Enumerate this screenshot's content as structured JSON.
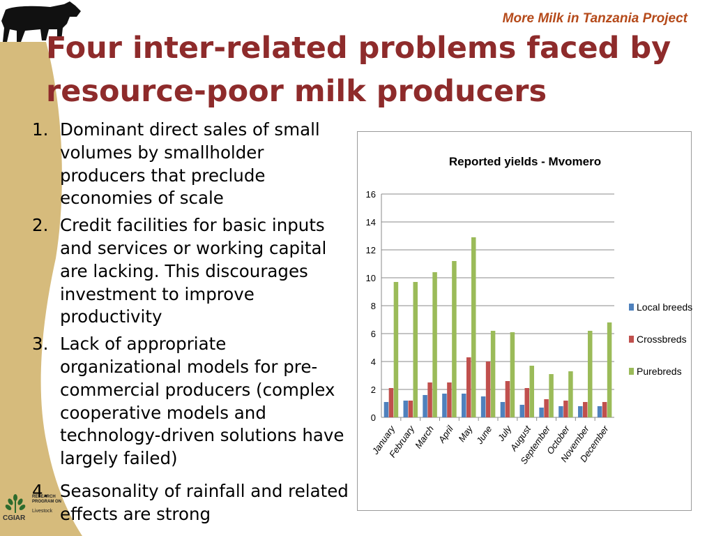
{
  "header": {
    "project": "More Milk in Tanzania Project"
  },
  "title": {
    "line1": "Four inter-related problems faced by",
    "line2": "resource-poor milk producers"
  },
  "problems": [
    {
      "num": "1.",
      "text": "Dominant direct sales of small volumes by smallholder producers that preclude economies of scale"
    },
    {
      "num": "2.",
      "text": "Credit facilities for basic inputs and services or working capital are lacking. This discourages investment to improve productivity"
    },
    {
      "num": "3.",
      "text": "Lack of appropriate organizational models for pre-commercial producers (complex cooperative models and technology-driven solutions have largely failed)"
    },
    {
      "num": "4.",
      "text": "Seasonality of rainfall  and related effects are strong"
    }
  ],
  "logo": {
    "org": "CGIAR",
    "program_line1": "RESEARCH",
    "program_line2": "PROGRAM ON",
    "program_name": "Livestock"
  },
  "colors": {
    "title": "#8e2b2b",
    "project": "#b54a1a",
    "sidebar": "#d6bb7c",
    "local": "#4f81bd",
    "cross": "#c0504d",
    "pure": "#9bbb59"
  },
  "chart_data": {
    "type": "bar",
    "title": "Reported yields - Mvomero",
    "xlabel": "",
    "ylabel": "",
    "ylim": [
      0,
      16
    ],
    "yticks": [
      0,
      2,
      4,
      6,
      8,
      10,
      12,
      14,
      16
    ],
    "grid": true,
    "legend_position": "right",
    "categories": [
      "January",
      "February",
      "March",
      "April",
      "May",
      "June",
      "July",
      "August",
      "September",
      "October",
      "November",
      "December"
    ],
    "series": [
      {
        "name": "Local breeds",
        "values": [
          1.1,
          1.2,
          1.6,
          1.7,
          1.7,
          1.5,
          1.1,
          0.9,
          0.7,
          0.8,
          0.8,
          0.8
        ]
      },
      {
        "name": "Crossbreds",
        "values": [
          2.1,
          1.2,
          2.5,
          2.5,
          4.3,
          4.0,
          2.6,
          2.1,
          1.3,
          1.2,
          1.1,
          1.1
        ]
      },
      {
        "name": "Purebreds",
        "values": [
          9.7,
          9.7,
          10.4,
          11.2,
          12.9,
          6.2,
          6.1,
          3.7,
          3.1,
          3.3,
          6.2,
          6.8
        ]
      }
    ]
  }
}
